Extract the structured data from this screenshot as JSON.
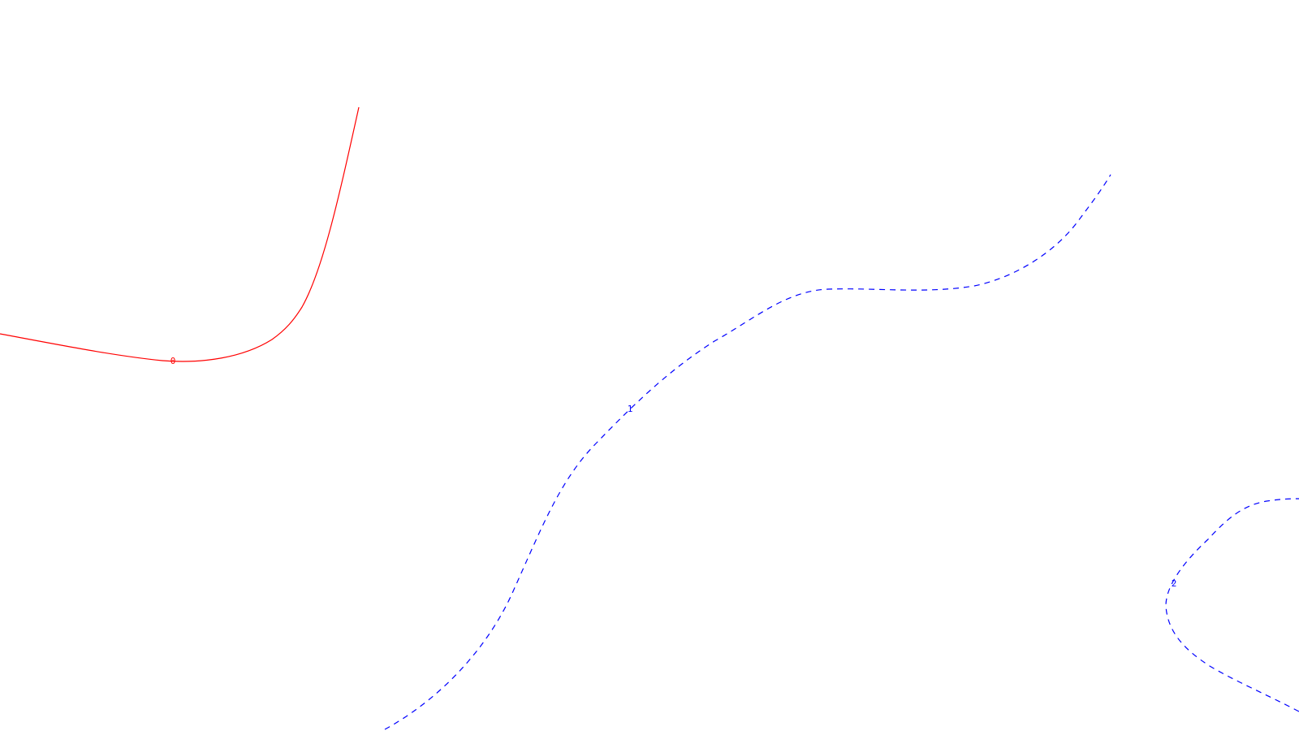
{
  "contours": [
    {
      "id": "contour-0",
      "label": "0",
      "color": "#ff0000",
      "style": "solid"
    },
    {
      "id": "contour-1",
      "label": "1",
      "color": "#0000ff",
      "style": "dashed"
    },
    {
      "id": "contour-2",
      "label": "2",
      "color": "#0000ff",
      "style": "dashed"
    }
  ]
}
